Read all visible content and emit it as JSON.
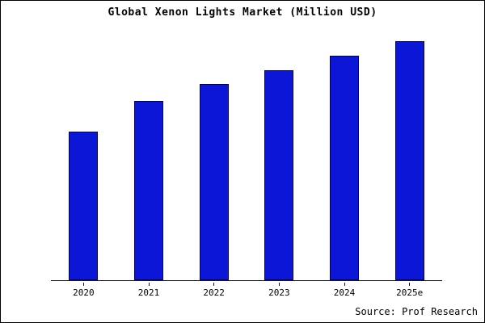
{
  "title": "Global Xenon Lights Market (Million USD)",
  "source": "Source: Prof Research",
  "colors": {
    "bar_fill": "#0b16d6",
    "bar_border": "#000060",
    "axis": "#1a1a1a",
    "background": "#ffffff",
    "frame_border": "#000000"
  },
  "chart_data": {
    "type": "bar",
    "categories": [
      "2020",
      "2021",
      "2022",
      "2023",
      "2024",
      "2025e"
    ],
    "values": [
      62,
      75,
      82,
      88,
      94,
      100
    ],
    "title": "Global Xenon Lights Market (Million USD)",
    "xlabel": "",
    "ylabel": "",
    "ylim": [
      0,
      100
    ],
    "grid": false,
    "legend": false,
    "value_labels_shown": false,
    "y_axis_shown": false,
    "note": "No y-axis ticks or value labels visible; values are relative heights (% of tallest bar)."
  }
}
